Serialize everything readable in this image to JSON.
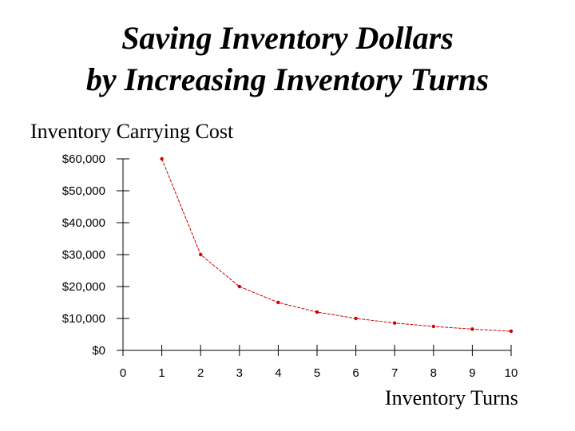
{
  "chart_data": {
    "type": "line",
    "title_line1": "Saving Inventory Dollars",
    "title_line2": "by Increasing Inventory Turns",
    "ylabel": "Inventory Carrying Cost",
    "xlabel": "Inventory Turns",
    "x": [
      1,
      2,
      3,
      4,
      5,
      6,
      7,
      8,
      9,
      10
    ],
    "y": [
      60000,
      30000,
      20000,
      15000,
      12000,
      10000,
      8571,
      7500,
      6667,
      6000
    ],
    "xlim": [
      0,
      10
    ],
    "ylim": [
      0,
      60000
    ],
    "x_ticks": [
      0,
      1,
      2,
      3,
      4,
      5,
      6,
      7,
      8,
      9,
      10
    ],
    "x_tick_labels": [
      "0",
      "1",
      "2",
      "3",
      "4",
      "5",
      "6",
      "7",
      "8",
      "9",
      "10"
    ],
    "y_ticks": [
      0,
      10000,
      20000,
      30000,
      40000,
      50000,
      60000
    ],
    "y_tick_labels": [
      "$0",
      "$10,000",
      "$20,000",
      "$30,000",
      "$40,000",
      "$50,000",
      "$60,000"
    ],
    "grid": false,
    "line_color": "#cc0000"
  }
}
